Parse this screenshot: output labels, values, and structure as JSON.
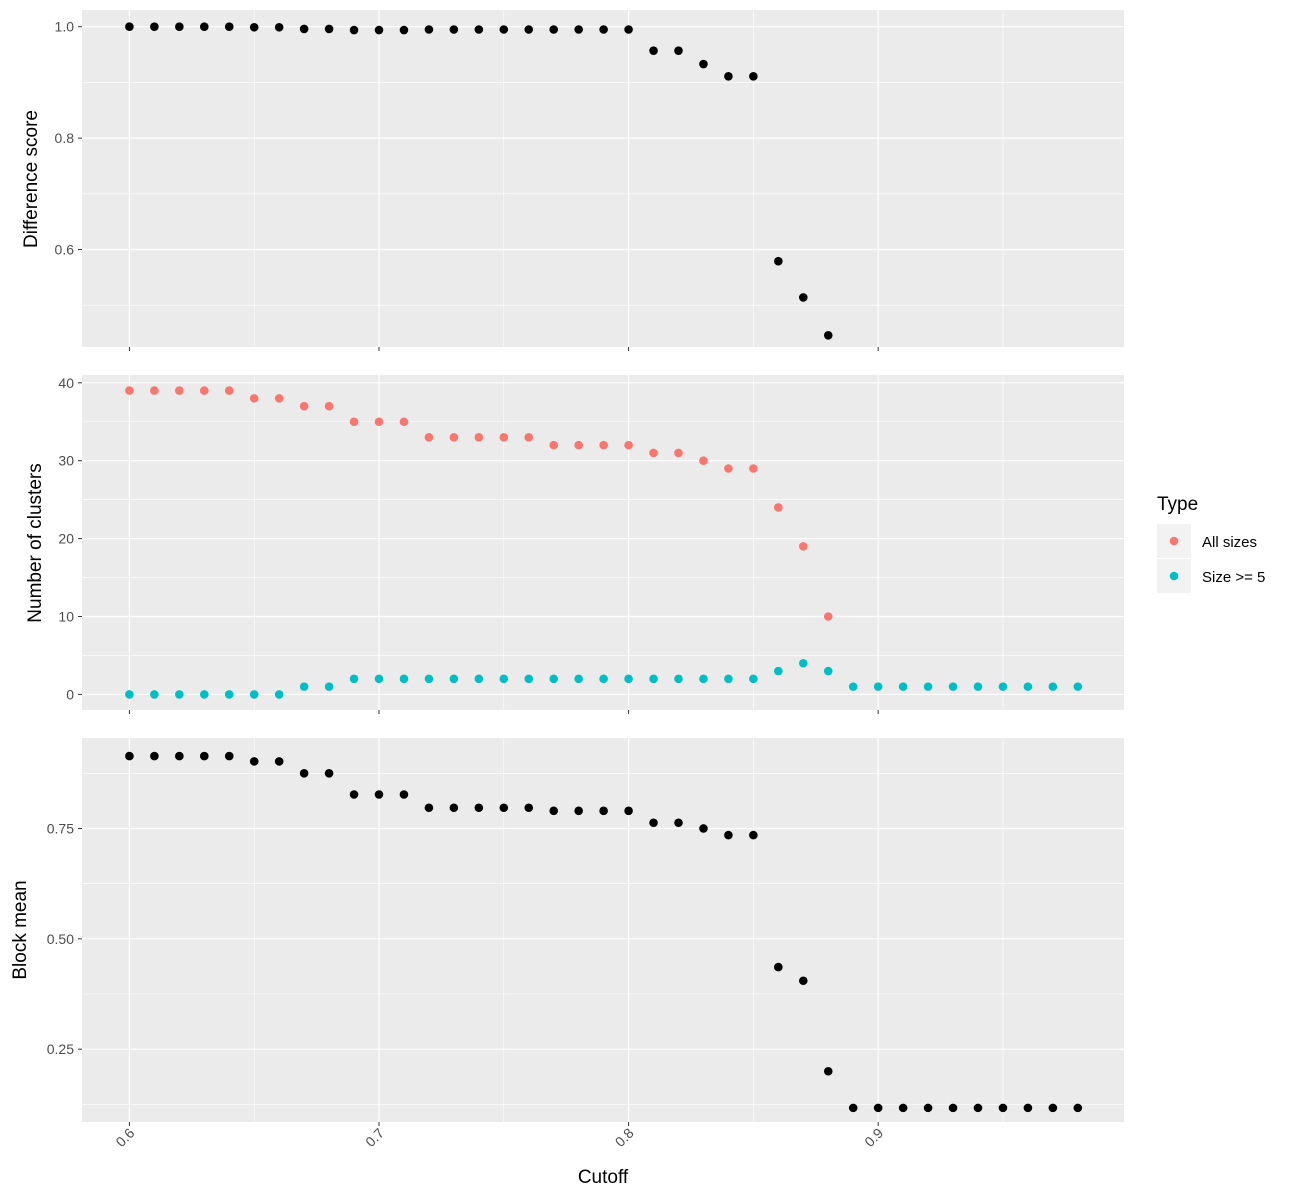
{
  "colors": {
    "panel_bg": "#EBEBEB",
    "grid_major": "#FFFFFF",
    "grid_minor": "#F5F5F5",
    "point_black": "#000000",
    "all_sizes": "#F8766D",
    "size_ge_5": "#00BFC4",
    "tick_text": "#4D4D4D",
    "tick_mark": "#333333"
  },
  "chart_data": [
    {
      "type": "scatter",
      "panel": "top",
      "ylabel": "Difference score",
      "xlim": [
        0.581,
        0.9985
      ],
      "ylim": [
        0.425,
        1.03
      ],
      "x_ticks": [
        0.6,
        0.7,
        0.8,
        0.9
      ],
      "y_ticks": [
        0.6,
        0.8,
        1.0
      ],
      "y_tick_labels": [
        "0.6",
        "0.8",
        "1.0"
      ],
      "grid": true,
      "series": [
        {
          "x": [
            0.6,
            0.61,
            0.62,
            0.63,
            0.64,
            0.65,
            0.66,
            0.67,
            0.68,
            0.69,
            0.7,
            0.71,
            0.72,
            0.73,
            0.74,
            0.75,
            0.76,
            0.77,
            0.78,
            0.79,
            0.8,
            0.81,
            0.82,
            0.83,
            0.84,
            0.85,
            0.86,
            0.87,
            0.88
          ],
          "y": [
            1.0,
            1.0,
            1.0,
            1.0,
            1.0,
            0.999,
            0.999,
            0.996,
            0.996,
            0.994,
            0.994,
            0.994,
            0.995,
            0.995,
            0.995,
            0.995,
            0.995,
            0.995,
            0.995,
            0.995,
            0.995,
            0.957,
            0.957,
            0.933,
            0.911,
            0.911,
            0.579,
            0.514,
            0.446
          ]
        }
      ]
    },
    {
      "type": "scatter",
      "panel": "middle",
      "ylabel": "Number of clusters",
      "xlim": [
        0.581,
        0.9985
      ],
      "ylim": [
        -2,
        41
      ],
      "x_ticks": [
        0.6,
        0.7,
        0.8,
        0.9
      ],
      "y_ticks": [
        0,
        10,
        20,
        30,
        40
      ],
      "y_tick_labels": [
        "0",
        "10",
        "20",
        "30",
        "40"
      ],
      "grid": true,
      "legend": {
        "title": "Type",
        "placement": "right",
        "entries": [
          "All sizes",
          "Size >= 5"
        ]
      },
      "series": [
        {
          "name": "All sizes",
          "x": [
            0.6,
            0.61,
            0.62,
            0.63,
            0.64,
            0.65,
            0.66,
            0.67,
            0.68,
            0.69,
            0.7,
            0.71,
            0.72,
            0.73,
            0.74,
            0.75,
            0.76,
            0.77,
            0.78,
            0.79,
            0.8,
            0.81,
            0.82,
            0.83,
            0.84,
            0.85,
            0.86,
            0.87,
            0.88
          ],
          "y": [
            39,
            39,
            39,
            39,
            39,
            38,
            38,
            37,
            37,
            35,
            35,
            35,
            33,
            33,
            33,
            33,
            33,
            32,
            32,
            32,
            32,
            31,
            31,
            30,
            29,
            29,
            24,
            19,
            10
          ]
        },
        {
          "name": "Size >= 5",
          "x": [
            0.6,
            0.61,
            0.62,
            0.63,
            0.64,
            0.65,
            0.66,
            0.67,
            0.68,
            0.69,
            0.7,
            0.71,
            0.72,
            0.73,
            0.74,
            0.75,
            0.76,
            0.77,
            0.78,
            0.79,
            0.8,
            0.81,
            0.82,
            0.83,
            0.84,
            0.85,
            0.86,
            0.87,
            0.88,
            0.89,
            0.9,
            0.91,
            0.92,
            0.93,
            0.94,
            0.95,
            0.96,
            0.97,
            0.98
          ],
          "y": [
            0,
            0,
            0,
            0,
            0,
            0,
            0,
            1,
            1,
            2,
            2,
            2,
            2,
            2,
            2,
            2,
            2,
            2,
            2,
            2,
            2,
            2,
            2,
            2,
            2,
            2,
            3,
            4,
            3,
            1,
            1,
            1,
            1,
            1,
            1,
            1,
            1,
            1,
            1
          ]
        }
      ]
    },
    {
      "type": "scatter",
      "panel": "bottom",
      "xlabel": "Cutoff",
      "ylabel": "Block mean",
      "xlim": [
        0.581,
        0.9985
      ],
      "ylim": [
        0.085,
        0.955
      ],
      "x_ticks": [
        0.6,
        0.7,
        0.8,
        0.9
      ],
      "x_tick_labels": [
        "0.6",
        "0.7",
        "0.8",
        "0.9"
      ],
      "y_ticks": [
        0.25,
        0.5,
        0.75
      ],
      "y_tick_labels": [
        "0.25",
        "0.50",
        "0.75"
      ],
      "grid": true,
      "series": [
        {
          "x": [
            0.6,
            0.61,
            0.62,
            0.63,
            0.64,
            0.65,
            0.66,
            0.67,
            0.68,
            0.69,
            0.7,
            0.71,
            0.72,
            0.73,
            0.74,
            0.75,
            0.76,
            0.77,
            0.78,
            0.79,
            0.8,
            0.81,
            0.82,
            0.83,
            0.84,
            0.85,
            0.86,
            0.87,
            0.88,
            0.89,
            0.9,
            0.91,
            0.92,
            0.93,
            0.94,
            0.95,
            0.96,
            0.97,
            0.98
          ],
          "y": [
            0.914,
            0.914,
            0.914,
            0.914,
            0.914,
            0.902,
            0.902,
            0.875,
            0.875,
            0.827,
            0.827,
            0.827,
            0.797,
            0.797,
            0.797,
            0.797,
            0.797,
            0.79,
            0.79,
            0.79,
            0.79,
            0.763,
            0.763,
            0.75,
            0.735,
            0.735,
            0.436,
            0.405,
            0.2,
            0.117,
            0.117,
            0.117,
            0.117,
            0.117,
            0.117,
            0.117,
            0.117,
            0.117,
            0.117
          ]
        }
      ]
    }
  ]
}
